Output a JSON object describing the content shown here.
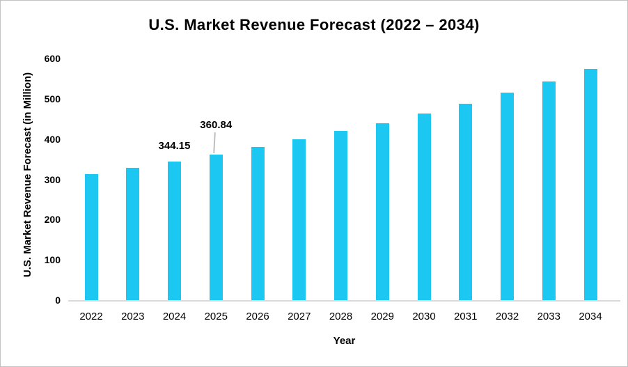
{
  "colors": {
    "bar": "#1cc7f2",
    "axis_line": "#d9d9d9",
    "leader_line": "#bfbfbf",
    "text": "#000000"
  },
  "chart_data": {
    "type": "bar",
    "title": "U.S. Market Revenue Forecast (2022 – 2034)",
    "xlabel": "Year",
    "ylabel": "U.S. Market Revenue Forecast (in Million)",
    "categories": [
      "2022",
      "2023",
      "2024",
      "2025",
      "2026",
      "2027",
      "2028",
      "2029",
      "2030",
      "2031",
      "2032",
      "2033",
      "2034"
    ],
    "values": [
      313,
      328,
      344.15,
      360.84,
      380,
      399,
      420,
      440,
      463,
      487,
      515,
      543,
      574
    ],
    "data_labels": [
      {
        "category": "2024",
        "text": "344.15",
        "leader_line": false
      },
      {
        "category": "2025",
        "text": "360.84",
        "leader_line": true
      }
    ],
    "ylim": [
      0,
      600
    ],
    "yticks": [
      0,
      100,
      200,
      300,
      400,
      500,
      600
    ],
    "grid": false,
    "legend": "none"
  }
}
